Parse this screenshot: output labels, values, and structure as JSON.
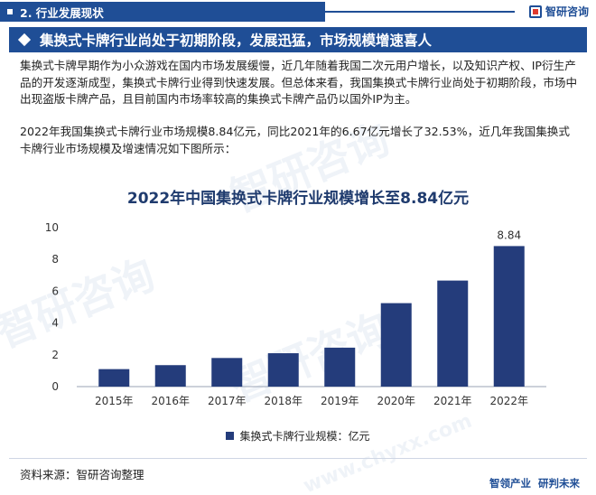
{
  "header": {
    "section_label": "2. 行业发展现状",
    "logo_text": "智研咨询"
  },
  "title_bar": {
    "text": "集换式卡牌行业尚处于初期阶段，发展迅猛，市场规模增速喜人"
  },
  "paragraphs": [
    "集换式卡牌早期作为小众游戏在国内市场发展缓慢，近几年随着我国二次元用户增长，以及知识产权、IP衍生产品的开发逐渐成型，集换式卡牌行业得到快速发展。但总体来看，我国集换式卡牌行业尚处于初期阶段，市场中出现盗版卡牌产品，且目前国内市场率较高的集换式卡牌产品仍以国外IP为主。",
    "2022年我国集换式卡牌行业市场规模8.84亿元，同比2021年的6.67亿元增长了32.53%，近几年我国集换式卡牌行业市场规模及增速情况如下图所示："
  ],
  "chart_data": {
    "type": "bar",
    "title": "2022年中国集换式卡牌行业规模增长至8.84亿元",
    "categories": [
      "2015年",
      "2016年",
      "2017年",
      "2018年",
      "2019年",
      "2020年",
      "2021年",
      "2022年"
    ],
    "series": [
      {
        "name": "集换式卡牌行业规模：亿元",
        "values": [
          1.1,
          1.35,
          1.8,
          2.1,
          2.45,
          5.25,
          6.67,
          8.84
        ],
        "data_labels": [
          "",
          "",
          "",
          "",
          "",
          "",
          "",
          "8.84"
        ]
      }
    ],
    "ylim": [
      0,
      10
    ],
    "yticks": [
      "0",
      "2",
      "4",
      "6",
      "8",
      "10"
    ],
    "grid": false,
    "legend_position": "bottom",
    "bar_color": "#243c7b"
  },
  "footer": {
    "source": "资料来源：智研咨询整理",
    "logo_left": "智领产业",
    "logo_right": "研判未来"
  },
  "watermark": {
    "cn": "智研咨询",
    "en": "www.chyxx.com"
  }
}
